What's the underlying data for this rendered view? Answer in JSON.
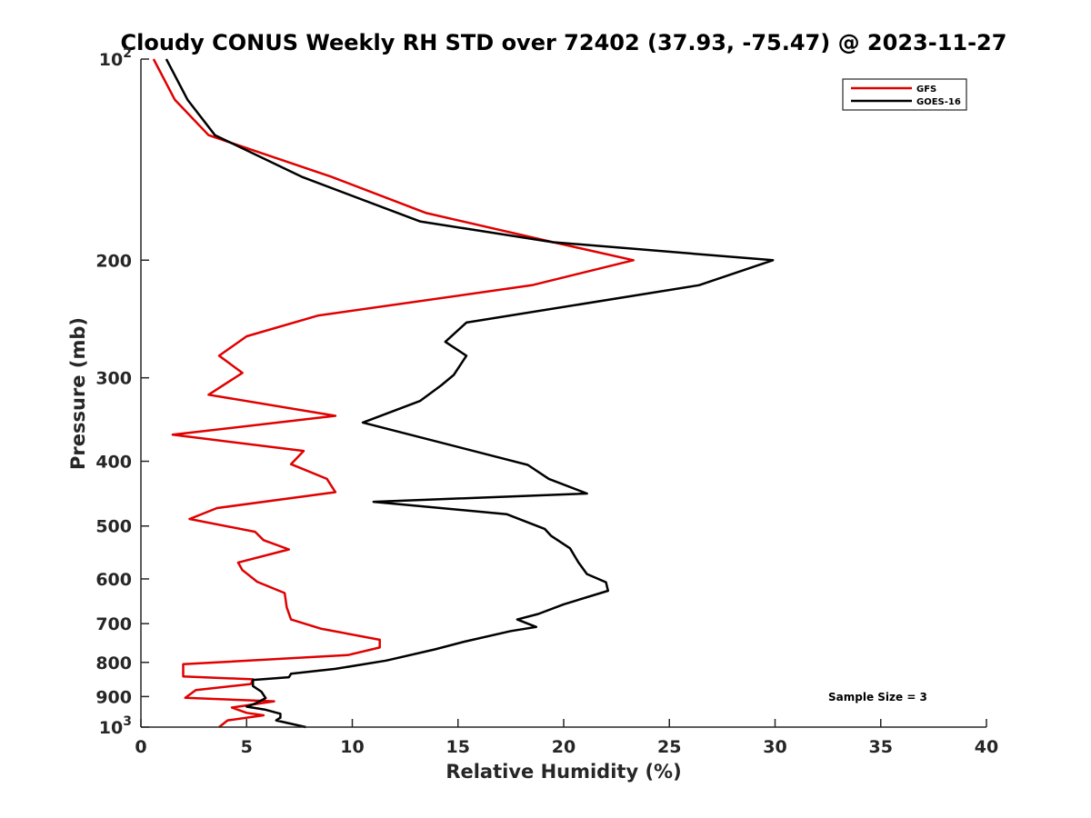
{
  "chart_data": {
    "type": "line",
    "title": "Cloudy CONUS Weekly RH STD over 72402 (37.93, -75.47) @ 2023-11-27",
    "xlabel": "Relative Humidity (%)",
    "ylabel": "Pressure (mb)",
    "xlim": [
      0,
      40
    ],
    "ylim": [
      100,
      1000
    ],
    "y_scale": "log",
    "y_reversed": true,
    "x_ticks": [
      0,
      5,
      10,
      15,
      20,
      25,
      30,
      35,
      40
    ],
    "y_ticks": [
      {
        "value": 100,
        "label": "10",
        "sup": "2"
      },
      {
        "value": 200,
        "label": "200",
        "sup": ""
      },
      {
        "value": 300,
        "label": "300",
        "sup": ""
      },
      {
        "value": 400,
        "label": "400",
        "sup": ""
      },
      {
        "value": 500,
        "label": "500",
        "sup": ""
      },
      {
        "value": 600,
        "label": "600",
        "sup": ""
      },
      {
        "value": 700,
        "label": "700",
        "sup": ""
      },
      {
        "value": 800,
        "label": "800",
        "sup": ""
      },
      {
        "value": 900,
        "label": "900",
        "sup": ""
      },
      {
        "value": 1000,
        "label": "10",
        "sup": "3"
      }
    ],
    "grid": false,
    "legend_position": "top-right",
    "annotation": "Sample Size = 3",
    "series": [
      {
        "name": "GFS",
        "color": "#e00000",
        "points": [
          [
            0.6,
            100
          ],
          [
            1.6,
            115
          ],
          [
            3.2,
            130
          ],
          [
            9.0,
            150
          ],
          [
            13.5,
            170
          ],
          [
            19.5,
            188
          ],
          [
            23.3,
            200
          ],
          [
            18.5,
            218
          ],
          [
            8.4,
            242
          ],
          [
            5.0,
            260
          ],
          [
            3.7,
            278
          ],
          [
            4.8,
            295
          ],
          [
            3.2,
            318
          ],
          [
            9.2,
            342
          ],
          [
            1.5,
            365
          ],
          [
            7.7,
            386
          ],
          [
            7.1,
            404
          ],
          [
            8.8,
            425
          ],
          [
            9.2,
            445
          ],
          [
            3.6,
            470
          ],
          [
            2.3,
            488
          ],
          [
            5.4,
            510
          ],
          [
            5.8,
            525
          ],
          [
            7.0,
            542
          ],
          [
            4.6,
            567
          ],
          [
            4.8,
            582
          ],
          [
            5.5,
            606
          ],
          [
            6.8,
            630
          ],
          [
            6.9,
            662
          ],
          [
            7.1,
            690
          ],
          [
            8.5,
            712
          ],
          [
            11.3,
            740
          ],
          [
            11.3,
            760
          ],
          [
            9.8,
            780
          ],
          [
            2.0,
            805
          ],
          [
            2.0,
            840
          ],
          [
            5.3,
            848
          ],
          [
            5.2,
            862
          ],
          [
            2.6,
            880
          ],
          [
            2.1,
            904
          ],
          [
            6.3,
            915
          ],
          [
            4.3,
            935
          ],
          [
            5.0,
            952
          ],
          [
            5.8,
            960
          ],
          [
            4.1,
            977
          ],
          [
            3.7,
            1000
          ]
        ]
      },
      {
        "name": "GOES-16",
        "color": "#000000",
        "points": [
          [
            1.2,
            100
          ],
          [
            2.2,
            115
          ],
          [
            3.5,
            130
          ],
          [
            7.6,
            150
          ],
          [
            13.2,
            175
          ],
          [
            19.5,
            188
          ],
          [
            29.9,
            200
          ],
          [
            26.4,
            218
          ],
          [
            15.4,
            248
          ],
          [
            14.4,
            265
          ],
          [
            15.4,
            278
          ],
          [
            14.8,
            297
          ],
          [
            14.2,
            308
          ],
          [
            13.2,
            325
          ],
          [
            10.5,
            350
          ],
          [
            18.3,
            405
          ],
          [
            19.3,
            425
          ],
          [
            21.1,
            447
          ],
          [
            11.0,
            460
          ],
          [
            17.3,
            480
          ],
          [
            19.1,
            505
          ],
          [
            19.4,
            517
          ],
          [
            20.3,
            540
          ],
          [
            20.7,
            567
          ],
          [
            21.1,
            590
          ],
          [
            22.0,
            607
          ],
          [
            22.1,
            625
          ],
          [
            20.0,
            655
          ],
          [
            18.8,
            677
          ],
          [
            17.8,
            690
          ],
          [
            18.7,
            708
          ],
          [
            17.5,
            718
          ],
          [
            15.3,
            745
          ],
          [
            13.9,
            765
          ],
          [
            11.6,
            795
          ],
          [
            9.2,
            818
          ],
          [
            7.1,
            832
          ],
          [
            7.0,
            842
          ],
          [
            5.3,
            850
          ],
          [
            5.3,
            868
          ],
          [
            5.7,
            885
          ],
          [
            5.9,
            905
          ],
          [
            5.4,
            922
          ],
          [
            5.0,
            932
          ],
          [
            5.9,
            942
          ],
          [
            6.6,
            955
          ],
          [
            6.6,
            968
          ],
          [
            6.4,
            977
          ],
          [
            7.8,
            1000
          ]
        ]
      }
    ]
  }
}
